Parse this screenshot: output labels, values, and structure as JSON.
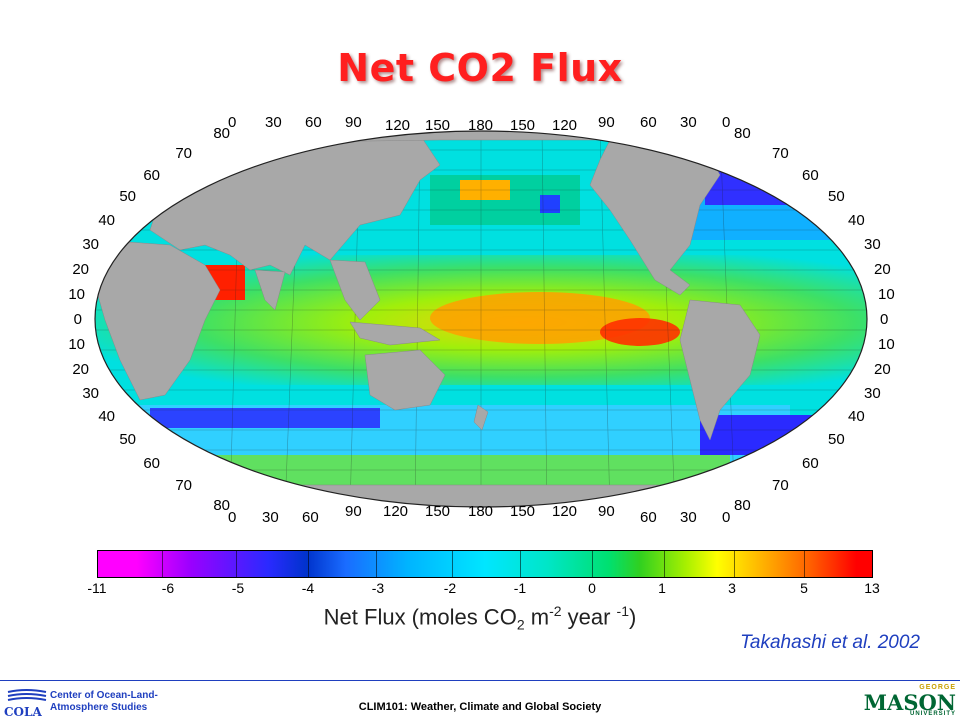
{
  "title": "Net CO2 Flux",
  "map": {
    "projection": "elliptical world ocean map",
    "land_color": "#a8a8a8",
    "top_lon_labels": [
      "0",
      "30",
      "60",
      "90",
      "120",
      "150",
      "180",
      "150",
      "120",
      "90",
      "60",
      "30",
      "0"
    ],
    "bottom_lon_labels": [
      "0",
      "30",
      "60",
      "90",
      "120",
      "150",
      "180",
      "150",
      "120",
      "90",
      "60",
      "30",
      "0"
    ],
    "lat_labels_left": [
      "80",
      "70",
      "60",
      "50",
      "40",
      "30",
      "20",
      "10",
      "0",
      "10",
      "20",
      "30",
      "40",
      "50",
      "60",
      "70",
      "80"
    ],
    "lat_labels_right": [
      "80",
      "70",
      "60",
      "50",
      "40",
      "30",
      "20",
      "10",
      "0",
      "10",
      "20",
      "30",
      "40",
      "50",
      "60",
      "70",
      "80"
    ]
  },
  "colorbar": {
    "ticks": [
      "-11",
      "-6",
      "-5",
      "-4",
      "-3",
      "-2",
      "-1",
      "0",
      "1",
      "3",
      "5",
      "13"
    ],
    "label_main": "Net Flux (moles CO",
    "label_sub": "2",
    "label_mid": " m",
    "label_sup1": "-2",
    "label_year": " year ",
    "label_sup2": "-1",
    "label_end": ")",
    "colors": [
      "#ff00ff",
      "#9a00ff",
      "#2a2aff",
      "#0033cc",
      "#1a6cff",
      "#00b4ff",
      "#00e6ff",
      "#00e070",
      "#a8f000",
      "#ffff00",
      "#ffb000",
      "#ff6000",
      "#ff0000"
    ]
  },
  "credit": "Takahashi et al. 2002",
  "footer": {
    "course": "CLIM101: Weather, Climate and Global Society",
    "org_name_line1": "Center of Ocean-Land-",
    "org_name_line2": "Atmosphere Studies",
    "org_abbr": "COLA",
    "univ_george": "GEORGE",
    "univ_mason": "MASON",
    "univ_university": "UNIVERSITY"
  }
}
